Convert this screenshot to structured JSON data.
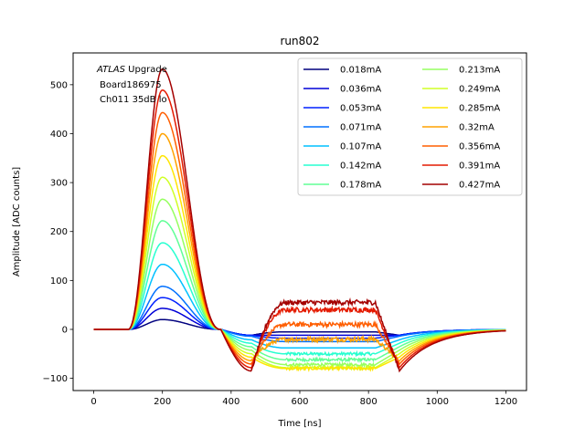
{
  "chart_data": {
    "type": "line",
    "title": "run802",
    "xlabel": "Time [ns]",
    "ylabel": "Amplitude [ADC counts]",
    "xlim": [
      -60,
      1260
    ],
    "ylim": [
      -125,
      565
    ],
    "xticks": [
      0,
      200,
      400,
      600,
      800,
      1000,
      1200
    ],
    "yticks": [
      -100,
      0,
      100,
      200,
      300,
      400,
      500
    ],
    "annotation": {
      "italic": "ATLAS",
      "line1_rest": " Upgrade",
      "line2": "Board186975",
      "line3": "Ch011 35dB lo"
    },
    "legend_location": "top-right",
    "legend_columns": 2,
    "series": [
      {
        "name": "0.018mA",
        "color": "#00007f",
        "peak": 20,
        "plateau": -5
      },
      {
        "name": "0.036mA",
        "color": "#0000d7",
        "peak": 43,
        "plateau": -12
      },
      {
        "name": "0.053mA",
        "color": "#0020ff",
        "peak": 65,
        "plateau": -18
      },
      {
        "name": "0.071mA",
        "color": "#0070ff",
        "peak": 88,
        "plateau": -25
      },
      {
        "name": "0.107mA",
        "color": "#00c0ff",
        "peak": 133,
        "plateau": -38
      },
      {
        "name": "0.142mA",
        "color": "#26ffd0",
        "peak": 177,
        "plateau": -50
      },
      {
        "name": "0.178mA",
        "color": "#60ff96",
        "peak": 222,
        "plateau": -62
      },
      {
        "name": "0.213mA",
        "color": "#96ff60",
        "peak": 266,
        "plateau": -72
      },
      {
        "name": "0.249mA",
        "color": "#d0ff26",
        "peak": 311,
        "plateau": -78
      },
      {
        "name": "0.285mA",
        "color": "#ffe500",
        "peak": 355,
        "plateau": -80
      },
      {
        "name": "0.32mA",
        "color": "#ffa200",
        "peak": 400,
        "plateau": -20
      },
      {
        "name": "0.356mA",
        "color": "#ff5e00",
        "peak": 443,
        "plateau": 10
      },
      {
        "name": "0.391mA",
        "color": "#e41a00",
        "peak": 489,
        "plateau": 40
      },
      {
        "name": "0.427mA",
        "color": "#a40000",
        "peak": 532,
        "plateau": 55
      }
    ]
  }
}
